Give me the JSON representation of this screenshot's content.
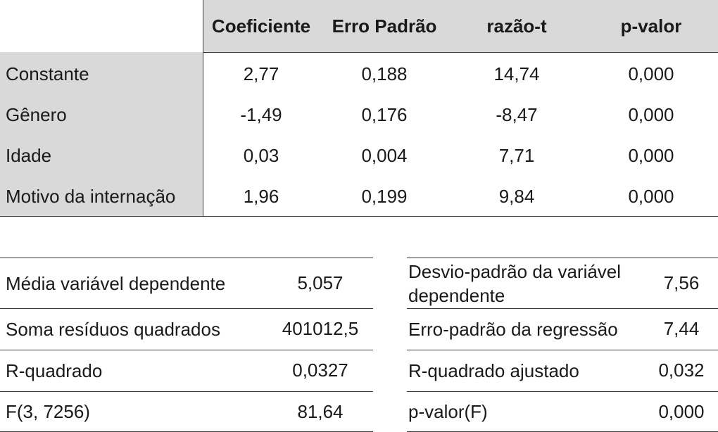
{
  "coefficients_table": {
    "headers": [
      "Coeficiente",
      "Erro Padrão",
      "razão-t",
      "p-valor"
    ],
    "rows": [
      {
        "label": "Constante",
        "values": [
          "2,77",
          "0,188",
          "14,74",
          "0,000"
        ]
      },
      {
        "label": "Gênero",
        "values": [
          "-1,49",
          "0,176",
          "-8,47",
          "0,000"
        ]
      },
      {
        "label": "Idade",
        "values": [
          "0,03",
          "0,004",
          "7,71",
          "0,000"
        ]
      },
      {
        "label": "Motivo da internação",
        "values": [
          "1,96",
          "0,199",
          "9,84",
          "0,000"
        ]
      }
    ]
  },
  "stats_left": [
    {
      "label": "Média variável dependente",
      "value": "5,057"
    },
    {
      "label": "Soma resíduos quadrados",
      "value": "401012,5"
    },
    {
      "label": "R-quadrado",
      "value": "0,0327"
    },
    {
      "label": "F(3, 7256)",
      "value": "81,64"
    }
  ],
  "stats_right": [
    {
      "label": "Desvio-padrão da variável dependente",
      "value": "7,56"
    },
    {
      "label": "Erro-padrão da regressão",
      "value": "7,44"
    },
    {
      "label": "R-quadrado ajustado",
      "value": "0,032"
    },
    {
      "label": "p-valor(F)",
      "value": "0,000"
    }
  ]
}
